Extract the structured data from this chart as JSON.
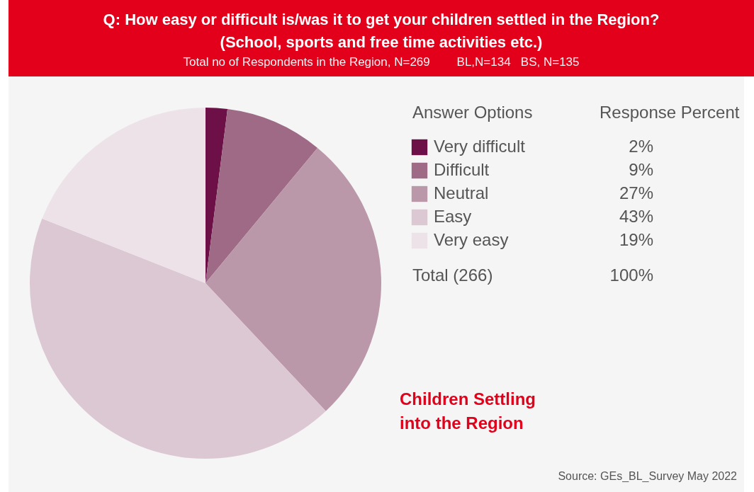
{
  "chart_data": {
    "type": "pie",
    "title": "Q: How easy or difficult is/was it to get your children settled in the Region? (School, sports and free time activities etc.)",
    "subtitle": "Total no of Respondents in the Region, N=269        BL,N=134   BS, N=135",
    "legend_title": "Answer Options",
    "legend": "right",
    "categories": [
      "Very difficult",
      "Difficult",
      "Neutral",
      "Easy",
      "Very easy"
    ],
    "values": [
      2,
      9,
      27,
      43,
      19
    ],
    "value_labels": [
      "2%",
      "9%",
      "27%",
      "43%",
      "19%"
    ],
    "colors": [
      "#6e1048",
      "#9e6a85",
      "#ba98a9",
      "#dcc8d3",
      "#ede2e8"
    ],
    "annotations": [
      "Response Percent",
      "Total (266)",
      "100%",
      "Children Settling into the Region",
      "Source: GEs_BL_Survey May 2022"
    ]
  }
}
